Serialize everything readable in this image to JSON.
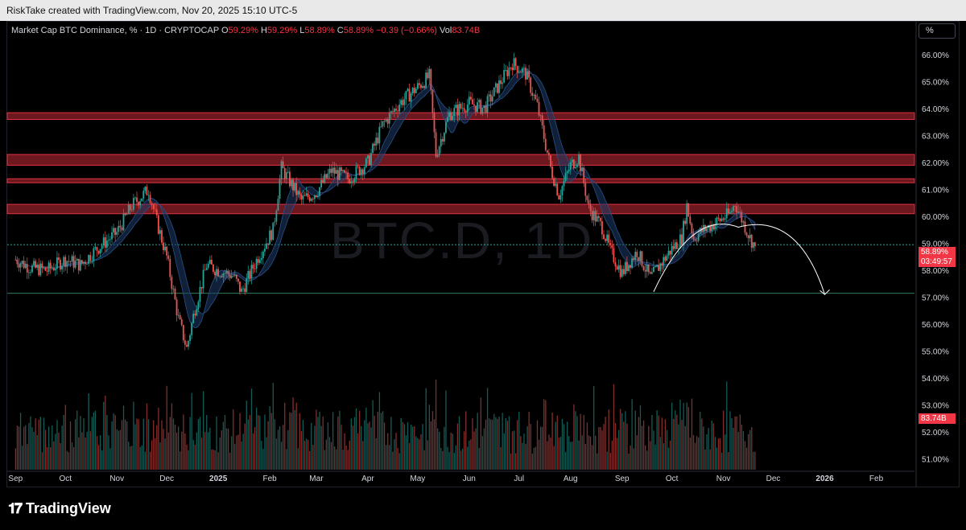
{
  "header": {
    "created_by": "RiskTake created with TradingView.com, Nov 20, 2025 15:10 UTC-5"
  },
  "legend": {
    "symbol": "Market Cap BTC Dominance, % · 1D · CRYPTOCAP",
    "open_label": "O",
    "open": "59.29%",
    "high_label": "H",
    "high": "59.29%",
    "low_label": "L",
    "low": "58.89%",
    "close_label": "C",
    "close": "58.89%",
    "change": "−0.39 (−0.66%)",
    "vol_label": "Vol",
    "vol": "83.74B"
  },
  "unit_button": "%",
  "watermark": "BTC.D, 1D",
  "price_tag": {
    "price": "58.89%",
    "countdown": "03:49:57"
  },
  "volume_tag": "83.74B",
  "brand": {
    "name": "TradingView",
    "icon": "tradingview-logo-icon"
  },
  "colors": {
    "up": "#26a69a",
    "down": "#ef5350",
    "zone": "#f23645",
    "ma": "#1e3a66",
    "curve": "#ffffff"
  },
  "chart_data": {
    "type": "candlestick",
    "title": "Market Cap BTC Dominance, % · 1D · CRYPTOCAP",
    "ylabel": "%",
    "ylim": [
      50.6,
      66.6
    ],
    "y_ticks": [
      "66.00%",
      "65.00%",
      "64.00%",
      "63.00%",
      "62.00%",
      "61.00%",
      "60.00%",
      "59.00%",
      "58.00%",
      "57.00%",
      "56.00%",
      "55.00%",
      "54.00%",
      "53.00%",
      "52.00%",
      "51.00%"
    ],
    "x_ticks": [
      "Sep",
      "Oct",
      "Nov",
      "Dec",
      "2025",
      "Feb",
      "Mar",
      "Apr",
      "May",
      "Jun",
      "Jul",
      "Aug",
      "Sep",
      "Oct",
      "Nov",
      "Dec",
      "2026",
      "Feb"
    ],
    "x_ticks_bold": [
      "2025",
      "2026"
    ],
    "close_path": [
      {
        "date": "2024-09-01",
        "close": 58.4
      },
      {
        "date": "2024-09-10",
        "close": 58.1
      },
      {
        "date": "2024-09-20",
        "close": 58.0
      },
      {
        "date": "2024-10-01",
        "close": 58.4
      },
      {
        "date": "2024-10-10",
        "close": 58.2
      },
      {
        "date": "2024-10-20",
        "close": 58.8
      },
      {
        "date": "2024-11-01",
        "close": 59.4
      },
      {
        "date": "2024-11-10",
        "close": 60.4
      },
      {
        "date": "2024-11-20",
        "close": 61.0
      },
      {
        "date": "2024-11-25",
        "close": 59.8
      },
      {
        "date": "2024-12-01",
        "close": 58.5
      },
      {
        "date": "2024-12-08",
        "close": 56.2
      },
      {
        "date": "2024-12-13",
        "close": 55.1
      },
      {
        "date": "2024-12-18",
        "close": 56.6
      },
      {
        "date": "2024-12-25",
        "close": 58.2
      },
      {
        "date": "2025-01-01",
        "close": 58.0
      },
      {
        "date": "2025-01-10",
        "close": 57.8
      },
      {
        "date": "2025-01-15",
        "close": 57.2
      },
      {
        "date": "2025-01-25",
        "close": 58.5
      },
      {
        "date": "2025-02-03",
        "close": 59.5
      },
      {
        "date": "2025-02-08",
        "close": 61.8
      },
      {
        "date": "2025-02-20",
        "close": 60.6
      },
      {
        "date": "2025-03-01",
        "close": 60.9
      },
      {
        "date": "2025-03-10",
        "close": 61.7
      },
      {
        "date": "2025-03-20",
        "close": 61.4
      },
      {
        "date": "2025-04-01",
        "close": 62.0
      },
      {
        "date": "2025-04-10",
        "close": 63.4
      },
      {
        "date": "2025-04-20",
        "close": 64.2
      },
      {
        "date": "2025-05-01",
        "close": 64.8
      },
      {
        "date": "2025-05-08",
        "close": 65.2
      },
      {
        "date": "2025-05-12",
        "close": 62.3
      },
      {
        "date": "2025-05-20",
        "close": 63.8
      },
      {
        "date": "2025-06-01",
        "close": 64.2
      },
      {
        "date": "2025-06-10",
        "close": 64.0
      },
      {
        "date": "2025-06-20",
        "close": 65.0
      },
      {
        "date": "2025-06-27",
        "close": 65.7
      },
      {
        "date": "2025-07-05",
        "close": 65.3
      },
      {
        "date": "2025-07-12",
        "close": 64.1
      },
      {
        "date": "2025-07-20",
        "close": 61.8
      },
      {
        "date": "2025-07-25",
        "close": 60.8
      },
      {
        "date": "2025-08-01",
        "close": 61.9
      },
      {
        "date": "2025-08-06",
        "close": 62.2
      },
      {
        "date": "2025-08-12",
        "close": 60.3
      },
      {
        "date": "2025-08-20",
        "close": 59.6
      },
      {
        "date": "2025-08-25",
        "close": 58.7
      },
      {
        "date": "2025-09-01",
        "close": 57.9
      },
      {
        "date": "2025-09-10",
        "close": 58.7
      },
      {
        "date": "2025-09-18",
        "close": 57.7
      },
      {
        "date": "2025-09-25",
        "close": 58.3
      },
      {
        "date": "2025-10-01",
        "close": 58.8
      },
      {
        "date": "2025-10-07",
        "close": 59.2
      },
      {
        "date": "2025-10-10",
        "close": 60.4
      },
      {
        "date": "2025-10-14",
        "close": 59.2
      },
      {
        "date": "2025-10-20",
        "close": 59.5
      },
      {
        "date": "2025-10-28",
        "close": 59.8
      },
      {
        "date": "2025-11-05",
        "close": 60.1
      },
      {
        "date": "2025-11-08",
        "close": 60.5
      },
      {
        "date": "2025-11-12",
        "close": 59.9
      },
      {
        "date": "2025-11-17",
        "close": 59.2
      },
      {
        "date": "2025-11-20",
        "close": 58.89
      }
    ],
    "resistance_zones": [
      [
        63.6,
        63.85
      ],
      [
        61.9,
        62.3
      ],
      [
        61.25,
        61.4
      ],
      [
        60.1,
        60.45
      ]
    ],
    "support_levels": [
      58.95,
      57.15
    ],
    "projection_arc": {
      "start": {
        "date": "2025-09-20",
        "value": 57.2
      },
      "peak": {
        "date": "2025-11-10",
        "value": 59.6
      },
      "end": {
        "date": "2026-01-01",
        "value": 57.1
      }
    },
    "volume_axis_max_bn": 250,
    "last_volume_bn": 83.74,
    "grid": false,
    "legend_position": "top-left"
  }
}
